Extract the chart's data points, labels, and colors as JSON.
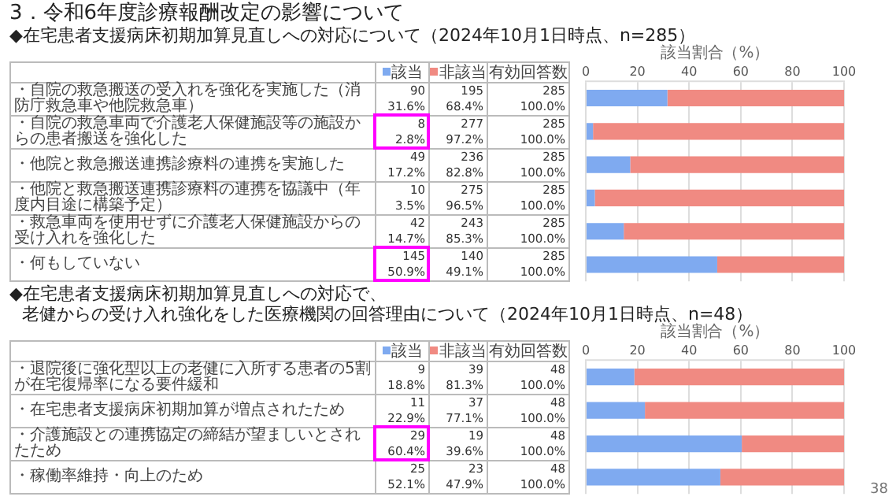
{
  "chart_data": [
    {
      "type": "bar",
      "orientation": "horizontal",
      "stacked": true,
      "title": "3．令和6年度診療報酬改定の影響について",
      "subtitle": "◆在宅患者支援病床初期加算見直しへの対応について（2024年10月1日時点、n=285）",
      "x2label": "該当割合（%）",
      "x2lim": [
        0,
        100
      ],
      "x2ticks": [
        0,
        20,
        40,
        60,
        80,
        100
      ],
      "grid": "x",
      "legend": "left",
      "data_labels": true,
      "categories": [
        "・自院の救急搬送の受入れを強化を実施した（消防庁救急車や他院救急車）",
        "・自院の救急車両で介護老人保健施設等の施設からの患者搬送を強化した",
        "・他院と救急搬送連携診療料の連携を実施した",
        "・他院と救急搬送連携診療料の連携を協議中（年度内目途に構築予定）",
        "・救急車両を使用せずに介護老人保健施設からの受け入れを強化した",
        "・何もしていない"
      ],
      "series": [
        {
          "name": "該当",
          "color": "#7faaf0",
          "values": [
            31.6,
            2.8,
            17.2,
            3.5,
            14.7,
            50.9
          ],
          "value_labels": [
            "90\n31.6%",
            "8\n2.8%",
            "49\n17.2%",
            "10\n3.5%",
            "42\n14.7%",
            "145\n50.9%"
          ]
        },
        {
          "name": "非該当",
          "color": "#f08a82",
          "values": [
            68.4,
            97.2,
            82.8,
            96.5,
            85.3,
            49.1
          ],
          "value_labels": [
            "195\n68.4%",
            "277\n97.2%",
            "236\n82.8%",
            "275\n96.5%",
            "243\n85.3%",
            "140\n49.1%"
          ]
        }
      ],
      "totals": [
        "100.0%",
        "100.0%",
        "100.0%",
        "100.0%",
        "100.0%",
        "100.0%"
      ],
      "annotations": [
        "有効回答数",
        "285",
        "285",
        "285",
        "285",
        "285",
        "285"
      ]
    },
    {
      "type": "bar",
      "orientation": "horizontal",
      "stacked": true,
      "title": "◆在宅患者支援病床初期加算見直しへの対応で、",
      "subtitle": "老健からの受け入れ強化をした医療機関の回答理由について（2024年10月1日時点、n=48）",
      "x2label": "該当割合（%）",
      "x2lim": [
        0,
        100
      ],
      "x2ticks": [
        0,
        20,
        40,
        60,
        80,
        100
      ],
      "grid": "x",
      "legend": "left",
      "data_labels": true,
      "categories": [
        "・退院後に強化型以上の老健に入所する患者の5割が在宅復帰率になる要件緩和",
        "・在宅患者支援病床初期加算が増点されたため",
        "・介護施設との連携協定の締結が望ましいとされたため",
        "・稼働率維持・向上のため"
      ],
      "series": [
        {
          "name": "該当",
          "color": "#7faaf0",
          "values": [
            18.8,
            22.9,
            60.4,
            52.1
          ],
          "value_labels": [
            "9\n18.8%",
            "11\n22.9%",
            "29\n60.4%",
            "25\n52.1%"
          ]
        },
        {
          "name": "非該当",
          "color": "#f08a82",
          "values": [
            81.3,
            77.1,
            39.6,
            47.9
          ],
          "value_labels": [
            "39\n81.3%",
            "37\n77.1%",
            "19\n39.6%",
            "23\n47.9%"
          ]
        }
      ],
      "totals": [
        "100.0%",
        "100.0%",
        "100.0%",
        "100.0%"
      ],
      "annotations": [
        "有効回答数",
        "48",
        "48",
        "48",
        "48",
        "38"
      ]
    }
  ]
}
